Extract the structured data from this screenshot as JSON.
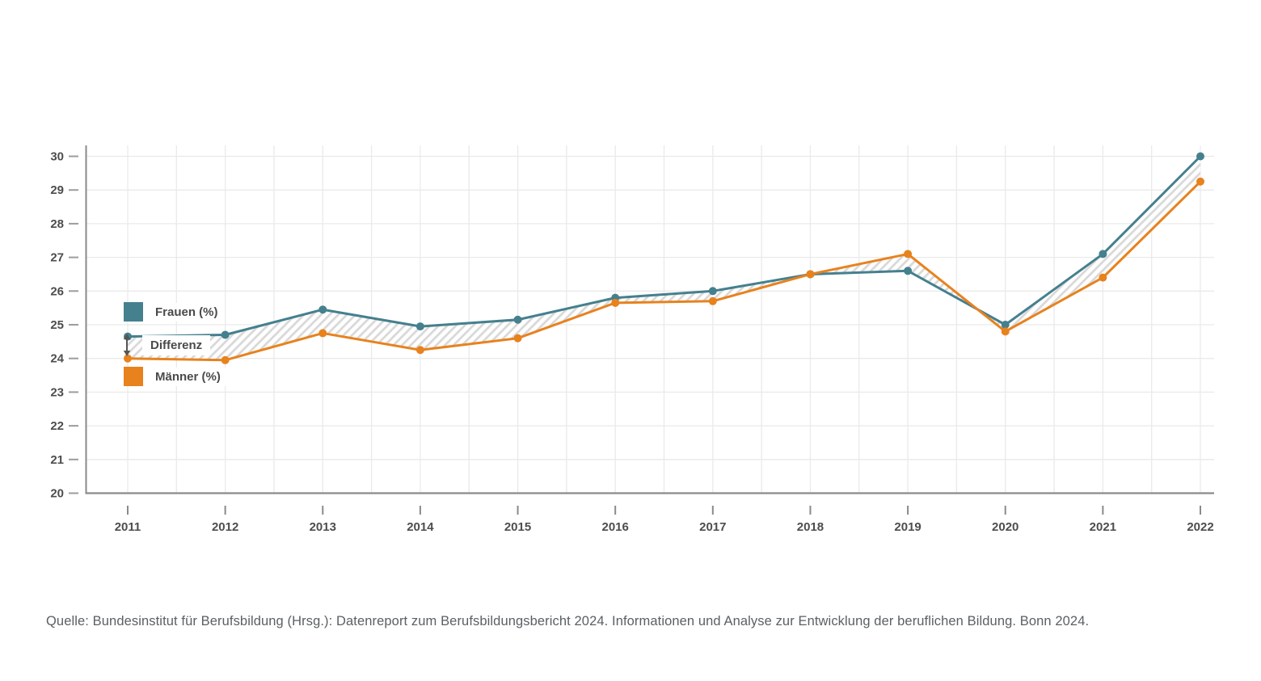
{
  "chart_data": {
    "type": "line",
    "title": "",
    "xlabel": "",
    "ylabel": "",
    "categories": [
      "2011",
      "2012",
      "2013",
      "2014",
      "2015",
      "2016",
      "2017",
      "2018",
      "2019",
      "2020",
      "2021",
      "2022"
    ],
    "series": [
      {
        "name": "Frauen (%)",
        "color": "#45808E",
        "values": [
          24.65,
          24.7,
          25.45,
          24.95,
          25.15,
          25.8,
          26.0,
          26.5,
          26.6,
          25.0,
          27.1,
          30.0
        ]
      },
      {
        "name": "Männer (%)",
        "color": "#E8821D",
        "values": [
          24.0,
          23.95,
          24.75,
          24.25,
          24.6,
          25.65,
          25.7,
          26.5,
          27.1,
          24.8,
          26.4,
          29.25
        ]
      }
    ],
    "band": {
      "label": "Differenz",
      "between": [
        "Frauen (%)",
        "Männer (%)"
      ],
      "style": "diagonal-hatch"
    },
    "ylim": [
      20,
      30
    ],
    "ytick_step": 1,
    "grid": true,
    "legend_position": "inside-left"
  },
  "legend": {
    "frauen_label": "Frauen (%)",
    "differenz_label": "Differenz",
    "maenner_label": "Männer (%)"
  },
  "source": {
    "text": "Quelle: Bundesinstitut für Berufsbildung (Hrsg.): Datenreport zum Berufsbildungsbericht 2024. Informationen und Analyse zur Entwicklung der beruflichen Bildung. Bonn 2024."
  },
  "colors": {
    "frauen": "#45808E",
    "maenner": "#E8821D",
    "grid": "#eaeaea",
    "axis": "#8a8a8a",
    "tick": "#9c9c9c",
    "axis_text": "#4d4d4d",
    "hatch": "#d9d9d9",
    "arrow": "#555555"
  }
}
